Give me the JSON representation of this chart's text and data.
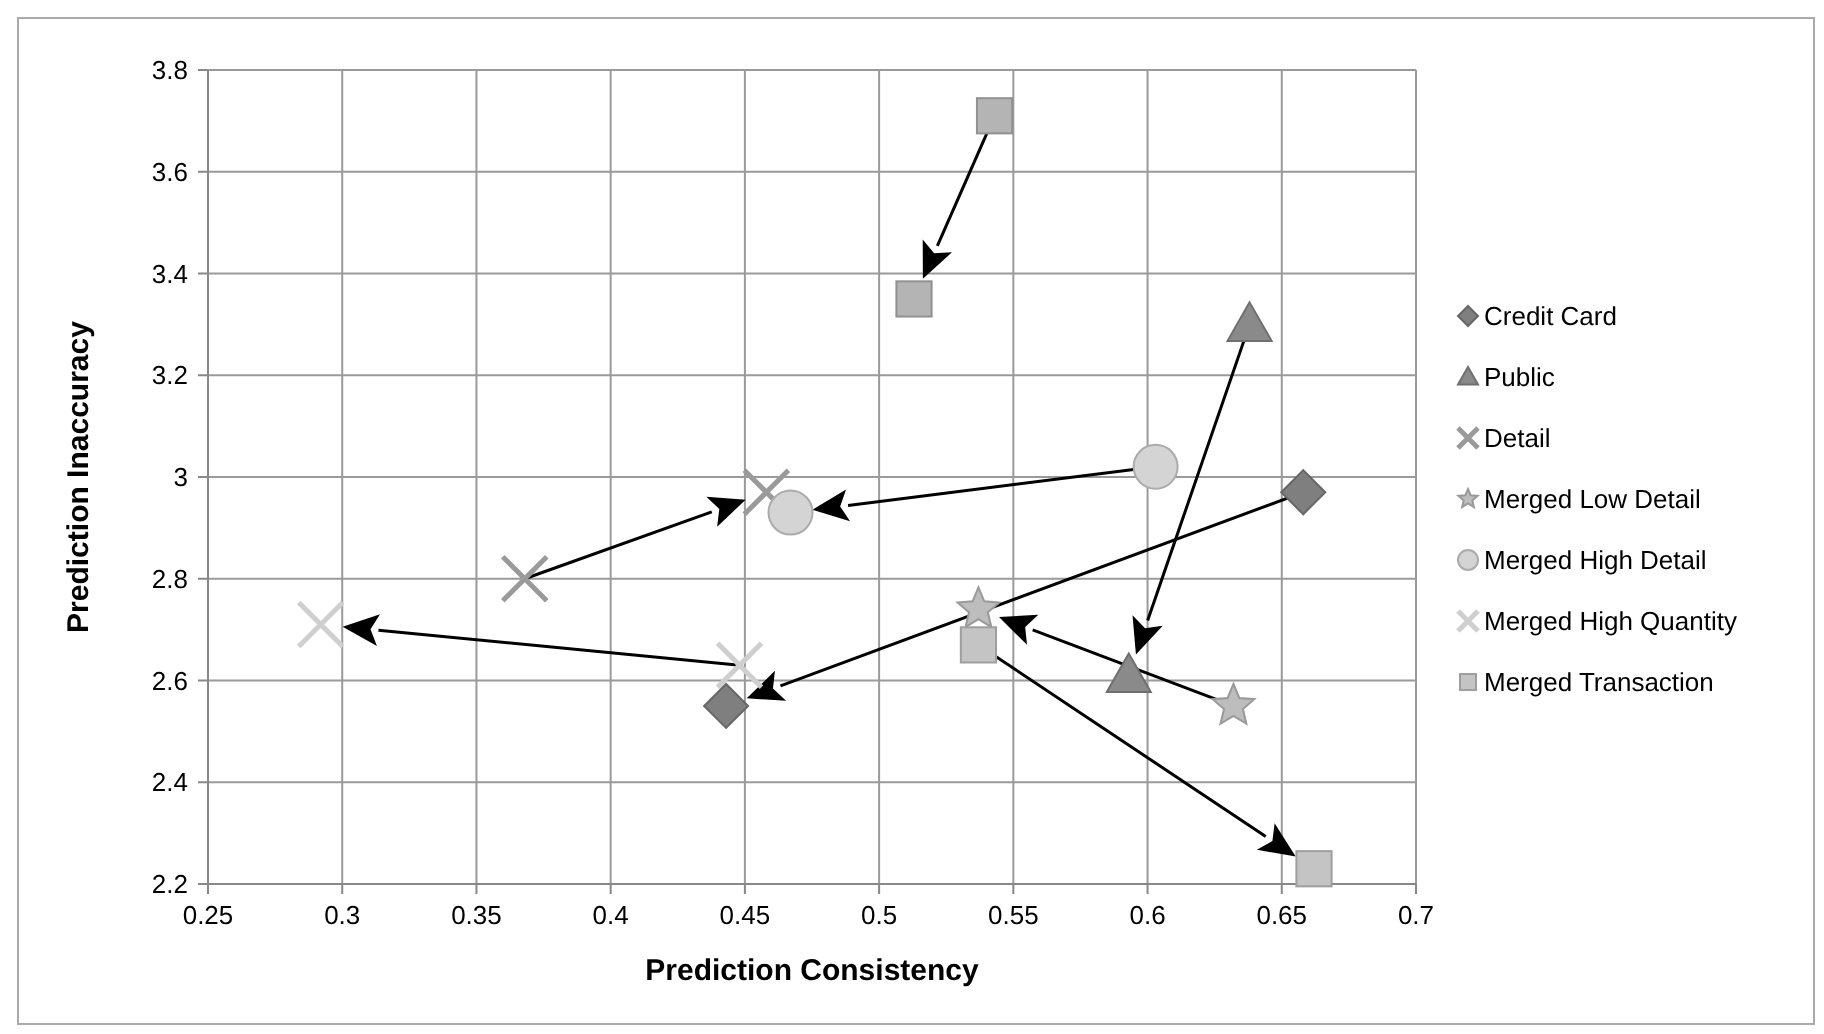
{
  "chart_data": {
    "type": "scatter",
    "xlabel": "Prediction Consistency",
    "ylabel": "Prediction Inaccuracy",
    "xlim": [
      0.25,
      0.7
    ],
    "xticks": [
      0.25,
      0.3,
      0.35,
      0.4,
      0.45,
      0.5,
      0.55,
      0.6,
      0.65,
      0.7
    ],
    "ylim": [
      2.2,
      3.8
    ],
    "yticks": [
      {
        "value": 2.2,
        "label": "2.2"
      },
      {
        "value": 2.4,
        "label": "2.4"
      },
      {
        "value": 2.6,
        "label": "2.6"
      },
      {
        "value": 2.8,
        "label": "2.8"
      },
      {
        "value": 3,
        "label": "3"
      },
      {
        "value": 3.2,
        "label": "3.2"
      },
      {
        "value": 3.4,
        "label": "3.4"
      },
      {
        "value": 3.6,
        "label": "3.6"
      },
      {
        "value": 3.8,
        "label": "3.8"
      }
    ],
    "grid": true,
    "legend": "right",
    "series": [
      {
        "name": "Credit Card",
        "color": "#7f7f7f",
        "marker": "diamond",
        "x": [
          0.658,
          0.443
        ],
        "values": [
          2.97,
          2.55
        ]
      },
      {
        "color": "#b4b4b4",
        "marker": "square",
        "x": [
          0.543,
          0.513
        ],
        "values": [
          3.71,
          3.35
        ]
      },
      {
        "name": "Public",
        "color": "#8a8a8a",
        "marker": "triangle",
        "x": [
          0.638,
          0.593
        ],
        "values": [
          3.3,
          2.61
        ]
      },
      {
        "name": "Detail",
        "color": "#9a9a9a",
        "marker": "cross",
        "x": [
          0.368,
          0.458
        ],
        "values": [
          2.8,
          2.97
        ]
      },
      {
        "name": "Merged Low Detail",
        "color": "#bdbdbd",
        "marker": "star",
        "x": [
          0.632,
          0.537
        ],
        "values": [
          2.55,
          2.74
        ]
      },
      {
        "name": "Merged High Detail",
        "color": "#d4d4d4",
        "marker": "circle",
        "x": [
          0.603,
          0.467
        ],
        "values": [
          3.02,
          2.93
        ]
      },
      {
        "name": "Merged High Quantity",
        "color": "#cfcfcf",
        "marker": "cross",
        "x": [
          0.448,
          0.292
        ],
        "values": [
          2.63,
          2.71
        ]
      },
      {
        "name": "Merged Transaction",
        "color": "#c4c4c4",
        "marker": "square",
        "x": [
          0.537,
          0.662
        ],
        "values": [
          2.67,
          2.23
        ]
      }
    ]
  }
}
